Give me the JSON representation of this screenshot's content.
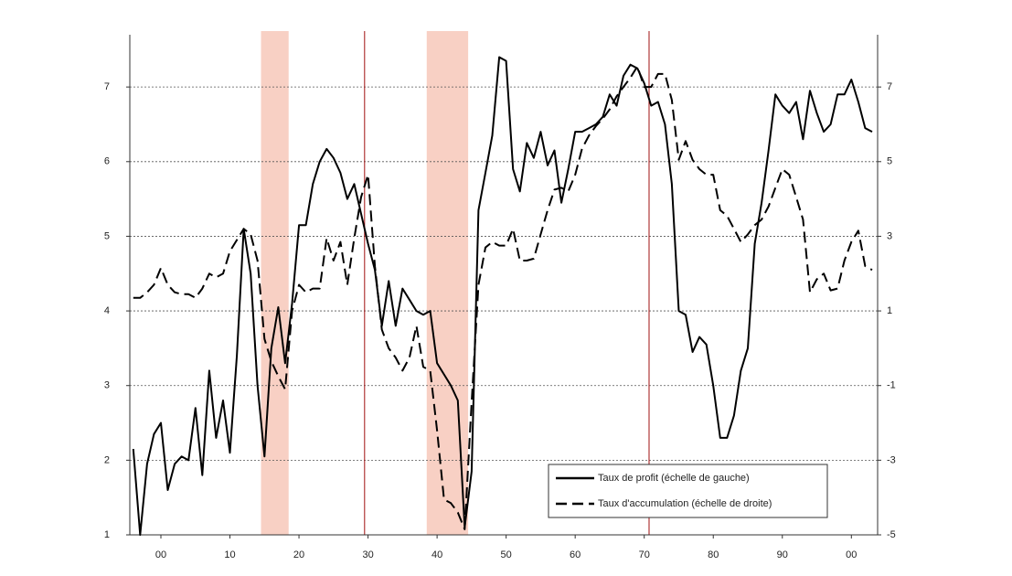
{
  "chart_data": {
    "type": "line",
    "x": [
      1896,
      1897,
      1898,
      1899,
      1900,
      1901,
      1902,
      1903,
      1904,
      1905,
      1906,
      1907,
      1908,
      1909,
      1910,
      1911,
      1912,
      1913,
      1914,
      1915,
      1916,
      1917,
      1918,
      1919,
      1920,
      1921,
      1922,
      1923,
      1924,
      1925,
      1926,
      1927,
      1928,
      1929,
      1930,
      1931,
      1932,
      1933,
      1934,
      1935,
      1936,
      1937,
      1938,
      1939,
      1940,
      1941,
      1942,
      1943,
      1944,
      1945,
      1946,
      1947,
      1948,
      1949,
      1950,
      1951,
      1952,
      1953,
      1954,
      1955,
      1956,
      1957,
      1958,
      1959,
      1960,
      1961,
      1962,
      1963,
      1964,
      1965,
      1966,
      1967,
      1968,
      1969,
      1970,
      1971,
      1972,
      1973,
      1974,
      1975,
      1976,
      1977,
      1978,
      1979,
      1980,
      1981,
      1982,
      1983,
      1984,
      1985,
      1986,
      1987,
      1988,
      1989,
      1990,
      1991,
      1992,
      1993,
      1994,
      1995,
      1996,
      1997,
      1998,
      1999,
      2000,
      2001,
      2002,
      2003
    ],
    "series": [
      {
        "name": "Taux de profit (échelle de gauche)",
        "color": "#000000",
        "style": "solid",
        "axis": "y",
        "values": [
          2.15,
          1.0,
          1.95,
          2.35,
          2.5,
          1.6,
          1.95,
          2.05,
          2.0,
          2.7,
          1.8,
          3.2,
          2.3,
          2.8,
          2.1,
          3.4,
          5.1,
          4.5,
          3.0,
          2.05,
          3.5,
          4.05,
          3.3,
          4.1,
          5.15,
          5.15,
          5.7,
          6.0,
          6.17,
          6.05,
          5.85,
          5.5,
          5.7,
          5.3,
          4.9,
          4.55,
          3.8,
          4.4,
          3.8,
          4.3,
          4.15,
          4.0,
          3.95,
          4.0,
          3.3,
          3.15,
          3.0,
          2.8,
          1.1,
          1.85,
          5.35,
          5.85,
          6.35,
          7.4,
          7.35,
          5.9,
          5.6,
          6.25,
          6.05,
          6.4,
          5.95,
          6.15,
          5.45,
          5.9,
          6.4,
          6.4,
          6.45,
          6.5,
          6.6,
          6.9,
          6.75,
          7.15,
          7.3,
          7.25,
          7.05,
          6.75,
          6.8,
          6.5,
          5.7,
          4.0,
          3.95,
          3.45,
          3.65,
          3.55,
          3.0,
          2.3,
          2.3,
          2.6,
          3.2,
          3.5,
          4.9,
          5.45,
          6.15,
          6.9,
          6.75,
          6.65,
          6.8,
          6.3,
          6.95,
          6.65,
          6.4,
          6.5,
          6.9,
          6.9,
          7.1,
          6.8,
          6.45,
          6.4
        ]
      },
      {
        "name": "Taux d'accumulation (échelle de droite)",
        "color": "#000000",
        "style": "dashed",
        "axis": "y2",
        "values": [
          1.35,
          1.35,
          1.5,
          1.7,
          2.15,
          1.7,
          1.5,
          1.45,
          1.45,
          1.35,
          1.6,
          2.0,
          1.9,
          2.0,
          2.6,
          2.9,
          3.2,
          3.05,
          2.35,
          0.25,
          -0.35,
          -0.75,
          -1.1,
          1.0,
          1.7,
          1.5,
          1.6,
          1.6,
          2.95,
          2.35,
          2.85,
          1.7,
          2.95,
          4.05,
          4.65,
          2.2,
          0.5,
          0.0,
          -0.25,
          -0.6,
          -0.25,
          0.6,
          -0.5,
          -0.6,
          -2.2,
          -4.05,
          -4.15,
          -4.4,
          -4.85,
          -1.45,
          1.7,
          2.7,
          2.85,
          2.75,
          2.75,
          3.2,
          2.35,
          2.35,
          2.4,
          3.05,
          3.7,
          4.25,
          4.3,
          4.2,
          4.65,
          5.35,
          5.7,
          5.95,
          6.15,
          6.4,
          6.75,
          7.0,
          7.25,
          7.55,
          7.0,
          7.0,
          7.35,
          7.35,
          6.65,
          5.05,
          5.55,
          5.05,
          4.8,
          4.65,
          4.65,
          3.7,
          3.55,
          3.2,
          2.85,
          3.05,
          3.3,
          3.45,
          3.8,
          4.3,
          4.8,
          4.65,
          4.05,
          3.45,
          1.5,
          1.85,
          2.0,
          1.55,
          1.6,
          2.35,
          2.85,
          3.15,
          2.2,
          2.1
        ]
      }
    ],
    "xlim": [
      1895.5,
      2003.8
    ],
    "xticks": [
      {
        "value": 1900,
        "label": "00"
      },
      {
        "value": 1910,
        "label": "10"
      },
      {
        "value": 1920,
        "label": "20"
      },
      {
        "value": 1930,
        "label": "30"
      },
      {
        "value": 1940,
        "label": "40"
      },
      {
        "value": 1950,
        "label": "50"
      },
      {
        "value": 1960,
        "label": "60"
      },
      {
        "value": 1970,
        "label": "70"
      },
      {
        "value": 1980,
        "label": "80"
      },
      {
        "value": 1990,
        "label": "90"
      },
      {
        "value": 2000,
        "label": "00"
      }
    ],
    "ylim": [
      1,
      7.7
    ],
    "yticks": [
      1,
      2,
      3,
      4,
      5,
      6,
      7
    ],
    "y2lim": [
      -5,
      8.4
    ],
    "y2ticks": [
      -5,
      -3,
      -1,
      1,
      3,
      5,
      7
    ],
    "grid": true,
    "legend": "lower right",
    "shaded_periods": [
      [
        1914.5,
        1918.5
      ],
      [
        1938.5,
        1944.5
      ]
    ],
    "shade_color": "#f8d0c4",
    "vlines": [
      1929.5,
      1970.7
    ],
    "vline_color": "#a01010"
  }
}
